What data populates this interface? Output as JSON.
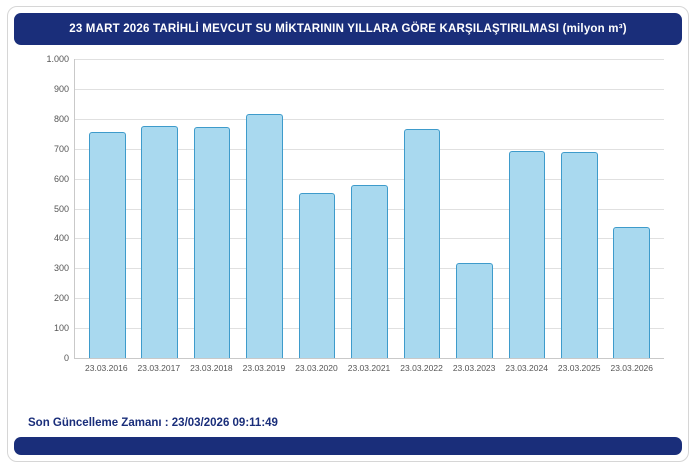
{
  "header": {
    "title": "23 MART 2026 TARİHLİ MEVCUT SU MİKTARININ YILLARA GÖRE KARŞILAŞTIRILMASI (milyon m³)"
  },
  "footer": {
    "last_update": "Son Güncelleme Zamanı : 23/03/2026 09:11:49"
  },
  "colors": {
    "header_bg": "#1a2e7a",
    "footer_bg": "#1a2e7a",
    "bar_fill": "#a9d9ef",
    "bar_border": "#3e9bcb",
    "gridline": "#e0e0e0"
  },
  "chart_data": {
    "type": "bar",
    "title": "23 MART 2026 TARİHLİ MEVCUT SU MİKTARININ YILLARA GÖRE KARŞILAŞTIRILMASI (milyon m³)",
    "categories": [
      "23.03.2016",
      "23.03.2017",
      "23.03.2018",
      "23.03.2019",
      "23.03.2020",
      "23.03.2021",
      "23.03.2022",
      "23.03.2023",
      "23.03.2024",
      "23.03.2025",
      "23.03.2026"
    ],
    "values": [
      755,
      775,
      773,
      815,
      553,
      578,
      767,
      317,
      692,
      689,
      438
    ],
    "xlabel": "",
    "ylabel": "",
    "ylim": [
      0,
      1000
    ],
    "ytick_step": 100,
    "ytick_labels": [
      "1.000",
      "900",
      "800",
      "700",
      "600",
      "500",
      "400",
      "300",
      "200",
      "100",
      "0"
    ],
    "grid": true,
    "legend": false
  }
}
